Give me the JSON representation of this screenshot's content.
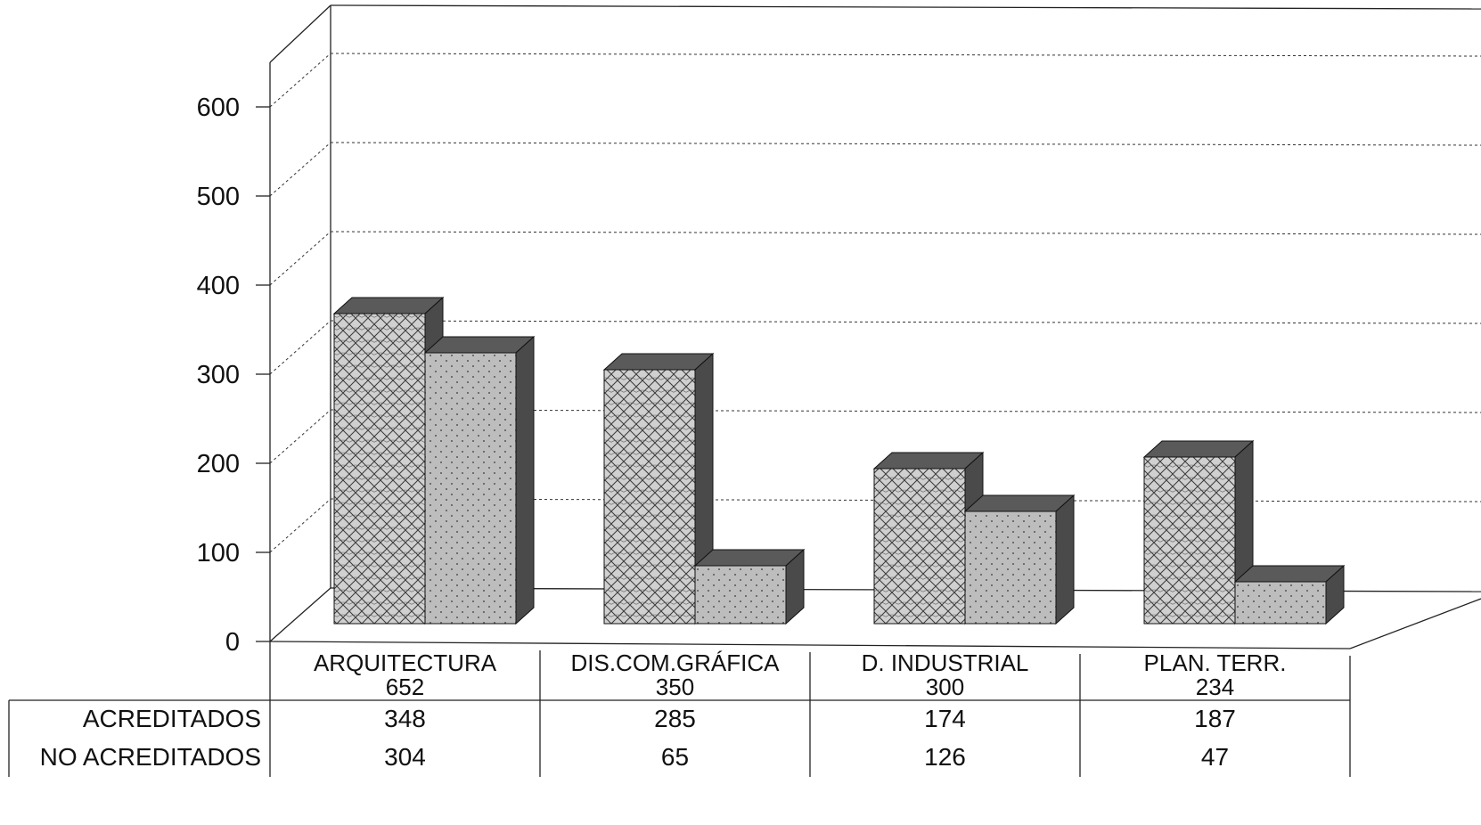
{
  "chart_data": {
    "type": "bar",
    "title": "",
    "xlabel": "",
    "ylabel": "",
    "ylim": [
      0,
      600
    ],
    "yticks": [
      0,
      100,
      200,
      300,
      400,
      500,
      600
    ],
    "grid": true,
    "style": "3d-clustered",
    "categories": [
      "ARQUITECTURA",
      "DIS.COM.GRÁFICA",
      "D. INDUSTRIAL",
      "PLAN. TERR."
    ],
    "category_totals": [
      "652",
      "350",
      "300",
      "234"
    ],
    "series": [
      {
        "name": "ACREDITADOS",
        "values": [
          348,
          285,
          174,
          187
        ],
        "labels": [
          "348",
          "285",
          "174",
          "187"
        ],
        "pattern": "crosshatch"
      },
      {
        "name": "NO ACREDITADOS",
        "values": [
          304,
          65,
          126,
          47
        ],
        "labels": [
          "304",
          "65",
          "126",
          "47"
        ],
        "pattern": "dotted"
      }
    ],
    "data_table": true
  },
  "colors": {
    "bar_fill": "#c9c9c9",
    "bar_side": "#4a4a4a",
    "bar_top": "#5a5a5a",
    "grid": "#333333"
  }
}
